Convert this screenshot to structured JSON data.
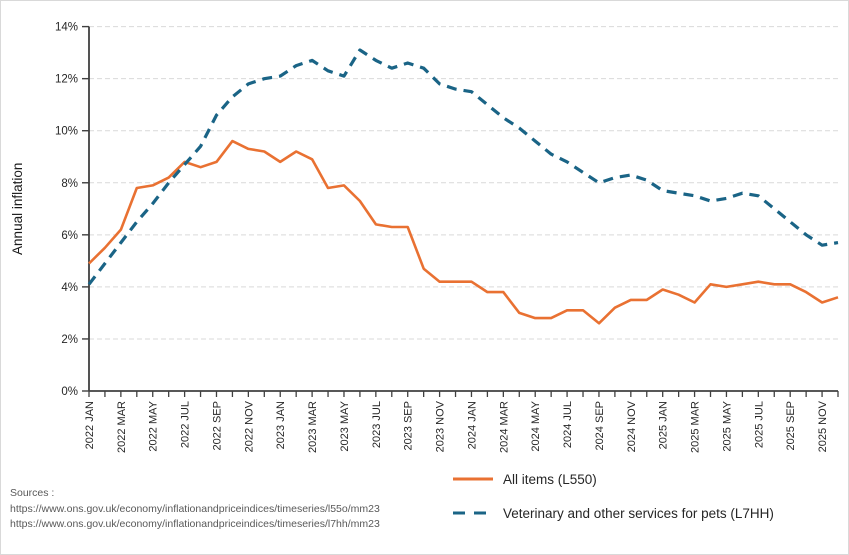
{
  "chart_data": {
    "type": "line",
    "title": "",
    "ylabel": "Annual inflation",
    "ylim": [
      0,
      14
    ],
    "y_tick_step": 2,
    "y_tick_labels": [
      "0%",
      "2%",
      "4%",
      "6%",
      "8%",
      "10%",
      "12%",
      "14%"
    ],
    "grid": true,
    "x_tick_label_every": 2,
    "legend_position": "bottom-right",
    "categories": [
      "2022 JAN",
      "2022 FEB",
      "2022 MAR",
      "2022 APR",
      "2022 MAY",
      "2022 JUN",
      "2022 JUL",
      "2022 AUG",
      "2022 SEP",
      "2022 OCT",
      "2022 NOV",
      "2022 DEC",
      "2023 JAN",
      "2023 FEB",
      "2023 MAR",
      "2023 APR",
      "2023 MAY",
      "2023 JUN",
      "2023 JUL",
      "2023 AUG",
      "2023 SEP",
      "2023 OCT",
      "2023 NOV",
      "2023 DEC",
      "2024 JAN",
      "2024 FEB",
      "2024 MAR",
      "2024 APR",
      "2024 MAY",
      "2024 JUN",
      "2024 JUL",
      "2024 AUG",
      "2024 SEP",
      "2024 OCT",
      "2024 NOV",
      "2024 DEC",
      "2025 JAN",
      "2025 FEB",
      "2025 MAR",
      "2025 APR",
      "2025 MAY",
      "2025 JUN",
      "2025 JUL",
      "2025 AUG",
      "2025 SEP",
      "2025 OCT",
      "2025 NOV",
      "2025 DEC"
    ],
    "series": [
      {
        "name": "All items (L550)",
        "color": "#E97132",
        "style": "solid",
        "values": [
          4.9,
          5.5,
          6.2,
          7.8,
          7.9,
          8.2,
          8.8,
          8.6,
          8.8,
          9.6,
          9.3,
          9.2,
          8.8,
          9.2,
          8.9,
          7.8,
          7.9,
          7.3,
          6.4,
          6.3,
          6.3,
          4.7,
          4.2,
          4.2,
          4.2,
          3.8,
          3.8,
          3.0,
          2.8,
          2.8,
          3.1,
          3.1,
          2.6,
          3.2,
          3.5,
          3.5,
          3.9,
          3.7,
          3.4,
          4.1,
          4.0,
          4.1,
          4.2,
          4.1,
          4.1,
          3.8,
          3.4,
          3.6
        ]
      },
      {
        "name": "Veterinary and other services for pets (L7HH)",
        "color": "#1A6486",
        "style": "dashed",
        "values": [
          4.1,
          4.9,
          5.7,
          6.5,
          7.2,
          8.0,
          8.7,
          9.4,
          10.6,
          11.3,
          11.8,
          12.0,
          12.1,
          12.5,
          12.7,
          12.3,
          12.1,
          13.1,
          12.7,
          12.4,
          12.6,
          12.4,
          11.8,
          11.6,
          11.5,
          11.0,
          10.5,
          10.1,
          9.6,
          9.1,
          8.8,
          8.4,
          8.0,
          8.2,
          8.3,
          8.1,
          7.7,
          7.6,
          7.5,
          7.3,
          7.4,
          7.6,
          7.5,
          7.0,
          6.5,
          6.0,
          5.6,
          5.7
        ]
      }
    ]
  },
  "sources": {
    "label": "Sources :",
    "lines": [
      "https://www.ons.gov.uk/economy/inflationandpriceindices/timeseries/l55o/mm23",
      "https://www.ons.gov.uk/economy/inflationandpriceindices/timeseries/l7hh/mm23"
    ]
  }
}
